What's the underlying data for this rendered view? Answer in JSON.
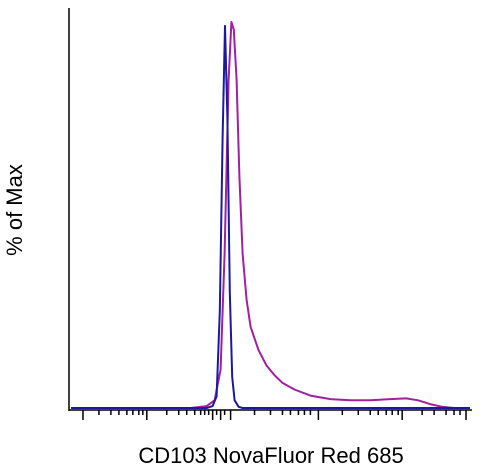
{
  "chart_data": {
    "type": "line",
    "title": "",
    "xlabel": "CD103 NovaFluor Red 685",
    "ylabel": "% of Max",
    "x_scale": "biexponential",
    "x_tick_labels_shown": false,
    "y_tick_labels_shown": false,
    "ylim": [
      0,
      100
    ],
    "grid": false,
    "legend": "none",
    "series": [
      {
        "color": "#a020a0",
        "points": [
          [
            0.0,
            0
          ],
          [
            0.3,
            0
          ],
          [
            0.34,
            0.5
          ],
          [
            0.36,
            2
          ],
          [
            0.375,
            10
          ],
          [
            0.385,
            40
          ],
          [
            0.395,
            85
          ],
          [
            0.402,
            100
          ],
          [
            0.408,
            98
          ],
          [
            0.415,
            85
          ],
          [
            0.422,
            60
          ],
          [
            0.43,
            40
          ],
          [
            0.44,
            28
          ],
          [
            0.45,
            21
          ],
          [
            0.47,
            15
          ],
          [
            0.49,
            11
          ],
          [
            0.51,
            8.5
          ],
          [
            0.53,
            6.5
          ],
          [
            0.56,
            4.8
          ],
          [
            0.6,
            3.2
          ],
          [
            0.65,
            2.3
          ],
          [
            0.7,
            2.0
          ],
          [
            0.75,
            2.0
          ],
          [
            0.8,
            2.3
          ],
          [
            0.84,
            2.5
          ],
          [
            0.87,
            2.0
          ],
          [
            0.9,
            1.0
          ],
          [
            0.93,
            0.3
          ],
          [
            0.96,
            0
          ],
          [
            1.0,
            0
          ]
        ]
      },
      {
        "color": "#1a1aa0",
        "points": [
          [
            0.0,
            0
          ],
          [
            0.34,
            0
          ],
          [
            0.355,
            0.5
          ],
          [
            0.365,
            3
          ],
          [
            0.373,
            25
          ],
          [
            0.38,
            70
          ],
          [
            0.386,
            99
          ],
          [
            0.392,
            75
          ],
          [
            0.398,
            30
          ],
          [
            0.404,
            8
          ],
          [
            0.41,
            2
          ],
          [
            0.42,
            0.3
          ],
          [
            0.43,
            0
          ],
          [
            1.0,
            0
          ]
        ]
      }
    ]
  }
}
